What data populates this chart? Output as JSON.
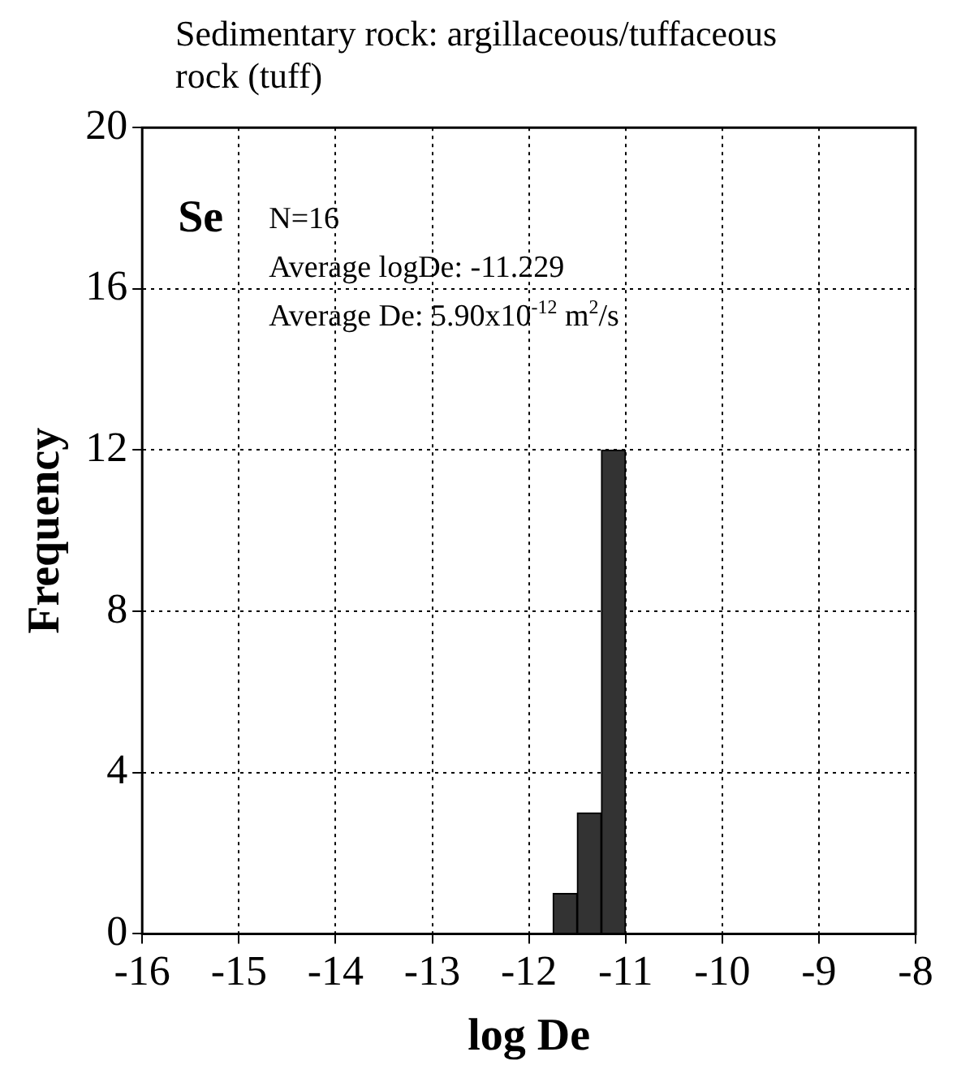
{
  "chart_data": {
    "type": "histogram",
    "title": "Sedimentary rock: argillaceous/tuffaceous rock (tuff)",
    "xlabel": "log De",
    "ylabel": "Frequency",
    "bins": [
      -11.75,
      -11.5,
      -11.25,
      -11
    ],
    "values": [
      1,
      3,
      12
    ],
    "color": "#333333",
    "xlim": [
      -16,
      -8
    ],
    "xticks": [
      -16,
      -15,
      -14,
      -13,
      -12,
      -11,
      -10,
      -9,
      -8
    ],
    "ylim": [
      0,
      20
    ],
    "yticks": [
      0,
      4,
      8,
      12,
      16,
      20
    ],
    "grid": true,
    "line_style": "dotted",
    "annotations": [
      "Se",
      "N=16",
      "Average logDe: -11.229",
      "Average De: 5.90x10$^{-12}$ m$^{2}$/s"
    ]
  }
}
